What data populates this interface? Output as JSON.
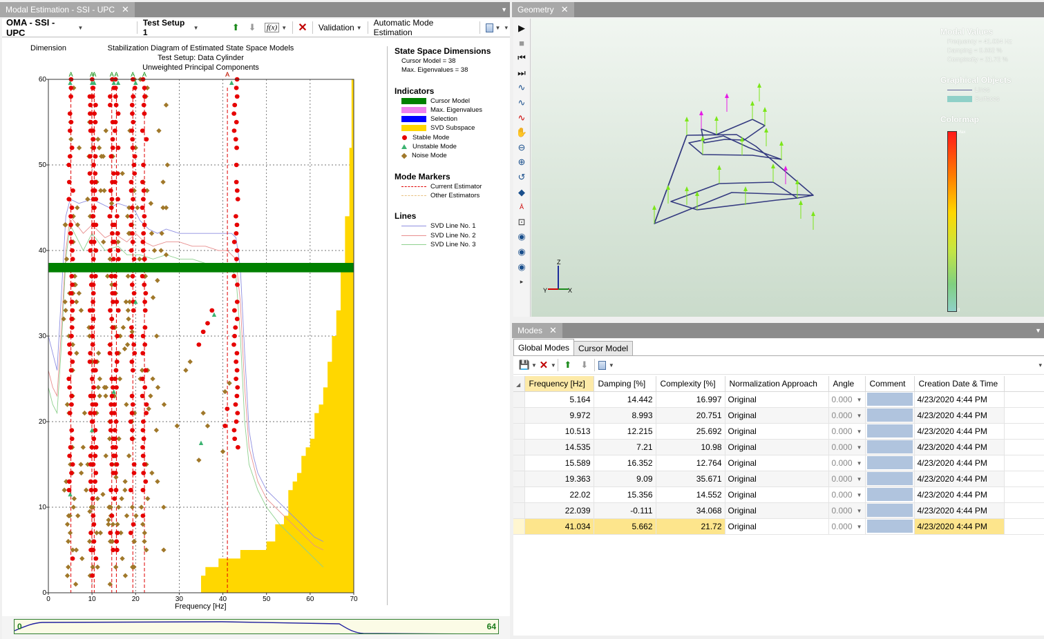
{
  "left_tab": {
    "title": "Modal Estimation - SSI - UPC"
  },
  "left_toolbar": {
    "method": "OMA - SSI - UPC",
    "setup": "Test Setup 1",
    "fx_label": "f(x)",
    "validation": "Validation",
    "auto": "Automatic Mode Estimation"
  },
  "chart": {
    "dimension_label": "Dimension",
    "title1": "Stabilization Diagram of Estimated State Space Models",
    "title2": "Test Setup: Data Cylinder",
    "title3": "Unweighted Principal Components",
    "xlabel": "Frequency [Hz]",
    "marker_letter": "A"
  },
  "chart_data": {
    "type": "scatter",
    "title": "Stabilization Diagram of Estimated State Space Models",
    "xlabel": "Frequency [Hz]",
    "ylabel": "Dimension",
    "xlim": [
      0,
      70
    ],
    "ylim": [
      0,
      60
    ],
    "xticks": [
      0,
      10,
      20,
      30,
      40,
      50,
      60,
      70
    ],
    "yticks": [
      0,
      10,
      20,
      30,
      40,
      50,
      60
    ],
    "cursor_model": 38,
    "max_eigenvalues": 38,
    "stable_columns_hz": [
      5.164,
      9.972,
      10.513,
      14.535,
      15.589,
      19.363,
      22.02,
      43.0
    ],
    "mode_markers_hz": [
      5.164,
      9.972,
      10.513,
      14.535,
      15.589,
      19.363,
      22.02,
      41.034
    ],
    "noise_points": [
      [
        9.5,
        9.5
      ],
      [
        12.5,
        11.5
      ],
      [
        13.8,
        8.5
      ],
      [
        15.5,
        13.5
      ],
      [
        17.5,
        28.5
      ],
      [
        19.2,
        30.5
      ],
      [
        21.5,
        26
      ],
      [
        23,
        21.5
      ],
      [
        24,
        34.5
      ],
      [
        25,
        36.5
      ],
      [
        27,
        39.5
      ],
      [
        29.5,
        19.5
      ],
      [
        31.5,
        26
      ],
      [
        32.5,
        27
      ],
      [
        34.5,
        15.5
      ],
      [
        35.5,
        21
      ],
      [
        36.5,
        19.5
      ],
      [
        40,
        16.5
      ],
      [
        40.5,
        23.5
      ],
      [
        41.5,
        24.5
      ],
      [
        18.5,
        45
      ],
      [
        23.5,
        45.5
      ],
      [
        26,
        42
      ],
      [
        12,
        47
      ],
      [
        14.5,
        45.5
      ],
      [
        27,
        45
      ]
    ],
    "stable_extra": [
      [
        34.5,
        29
      ],
      [
        35.5,
        30.5
      ],
      [
        36.5,
        31.5
      ],
      [
        37.5,
        33
      ],
      [
        40.5,
        19.5
      ],
      [
        41,
        21.5
      ]
    ],
    "unstable_points": [
      [
        35,
        17.5
      ],
      [
        38,
        32.5
      ],
      [
        5,
        11.5
      ],
      [
        10,
        19
      ],
      [
        15,
        23.5
      ],
      [
        20,
        34
      ]
    ],
    "svd_subspace_steps": [
      [
        35,
        2
      ],
      [
        36,
        3
      ],
      [
        39,
        4
      ],
      [
        44,
        5
      ],
      [
        50,
        6
      ],
      [
        52,
        8
      ],
      [
        54,
        9
      ],
      [
        55,
        12
      ],
      [
        56,
        13
      ],
      [
        57,
        14
      ],
      [
        58,
        16
      ],
      [
        59,
        17
      ],
      [
        60,
        18
      ],
      [
        61,
        21
      ],
      [
        62,
        22
      ],
      [
        63,
        24
      ],
      [
        64,
        27
      ],
      [
        65,
        30
      ],
      [
        66,
        33
      ],
      [
        67,
        38
      ],
      [
        68,
        44
      ],
      [
        69,
        52
      ],
      [
        69.5,
        60
      ],
      [
        70,
        60
      ]
    ],
    "svd_lines": [
      {
        "name": "SVD Line No. 1",
        "color": "#8e8ee0",
        "points": [
          [
            0,
            30
          ],
          [
            1,
            28
          ],
          [
            2,
            26
          ],
          [
            3,
            35
          ],
          [
            4,
            44
          ],
          [
            5,
            46
          ],
          [
            7,
            45.5
          ],
          [
            10,
            46
          ],
          [
            12,
            45.5
          ],
          [
            14,
            45
          ],
          [
            16,
            45.5
          ],
          [
            19,
            45
          ],
          [
            20,
            44.5
          ],
          [
            21,
            43.5
          ],
          [
            23,
            42.5
          ],
          [
            25,
            42
          ],
          [
            27,
            42.5
          ],
          [
            30,
            42
          ],
          [
            33,
            42
          ],
          [
            36,
            42
          ],
          [
            39,
            42
          ],
          [
            40,
            42
          ],
          [
            42,
            42
          ],
          [
            43,
            41.5
          ],
          [
            44,
            38
          ],
          [
            45,
            28
          ],
          [
            46,
            19
          ],
          [
            47,
            16
          ],
          [
            48,
            14
          ],
          [
            50,
            12
          ],
          [
            53,
            10.5
          ],
          [
            56,
            9
          ],
          [
            59,
            7.5
          ],
          [
            61,
            6.5
          ],
          [
            63,
            6
          ]
        ]
      },
      {
        "name": "SVD Line No. 2",
        "color": "#e88e8e",
        "points": [
          [
            0,
            26
          ],
          [
            1,
            24
          ],
          [
            2,
            23
          ],
          [
            3,
            31
          ],
          [
            4,
            40
          ],
          [
            5,
            44
          ],
          [
            8,
            42
          ],
          [
            10,
            43
          ],
          [
            13,
            41.5
          ],
          [
            15,
            42
          ],
          [
            18,
            41
          ],
          [
            20,
            42
          ],
          [
            22,
            41
          ],
          [
            24,
            40.5
          ],
          [
            27,
            41
          ],
          [
            30,
            41
          ],
          [
            33,
            40.5
          ],
          [
            36,
            40.5
          ],
          [
            39,
            40
          ],
          [
            41,
            40
          ],
          [
            43,
            39
          ],
          [
            44,
            34
          ],
          [
            45,
            24
          ],
          [
            46,
            17
          ],
          [
            48,
            13
          ],
          [
            50,
            11
          ],
          [
            53,
            9.5
          ],
          [
            56,
            8
          ],
          [
            59,
            6.5
          ],
          [
            61,
            5.5
          ],
          [
            63,
            5
          ]
        ]
      },
      {
        "name": "SVD Line No. 3",
        "color": "#8ed08e",
        "points": [
          [
            0,
            24
          ],
          [
            1,
            22
          ],
          [
            2,
            21
          ],
          [
            3,
            29
          ],
          [
            4,
            39
          ],
          [
            5,
            43
          ],
          [
            8,
            40
          ],
          [
            10,
            42
          ],
          [
            13,
            40
          ],
          [
            16,
            40.5
          ],
          [
            18,
            39.5
          ],
          [
            21,
            39.5
          ],
          [
            24,
            39
          ],
          [
            27,
            39.5
          ],
          [
            30,
            39
          ],
          [
            33,
            39
          ],
          [
            36,
            38.5
          ],
          [
            39,
            38.5
          ],
          [
            41,
            38.5
          ],
          [
            43,
            37
          ],
          [
            44,
            30
          ],
          [
            45,
            20
          ],
          [
            46,
            15
          ],
          [
            48,
            12
          ],
          [
            50,
            10
          ],
          [
            53,
            8
          ],
          [
            56,
            6.5
          ],
          [
            59,
            5
          ],
          [
            61,
            4
          ],
          [
            63,
            3
          ]
        ]
      }
    ]
  },
  "legend": {
    "ssd_title": "State Space Dimensions",
    "cursor_model": "Cursor Model = 38",
    "max_eig": "Max. Eigenvalues = 38",
    "indicators_title": "Indicators",
    "ind_cursor": "Cursor Model",
    "ind_maxeig": "Max. Eigenvalues",
    "ind_selection": "Selection",
    "ind_svd": "SVD Subspace",
    "ind_stable": "Stable Mode",
    "ind_unstable": "Unstable Mode",
    "ind_noise": "Noise Mode",
    "markers_title": "Mode Markers",
    "mk_current": "Current Estimator",
    "mk_other": "Other Estimators",
    "lines_title": "Lines",
    "line1": "SVD Line No. 1",
    "line2": "SVD Line No. 2",
    "line3": "SVD Line No. 3",
    "colors": {
      "cursor": "#008000",
      "maxeig": "#ee82ee",
      "selection": "#0000ff",
      "svd": "#ffd700",
      "stable": "#e60000",
      "unstable": "#3cb371",
      "noise": "#a0782a"
    }
  },
  "bottom_bar": {
    "min": "0",
    "max": "64"
  },
  "geometry": {
    "tab": "Geometry",
    "modal_values_title": "Modal Values",
    "frequency": "Frequency = 41.034 Hz",
    "damping": "Damping = 5.662 %",
    "complexity": "Complexity = 21.72 %",
    "graphical_objects_title": "Graphical Objects",
    "lines": "Lines",
    "surfaces": "Surfaces",
    "colormap_title": "Colormap",
    "colormap_max": "Max",
    "colormap_min": "0",
    "axis_z": "Z",
    "axis_y": "Y",
    "axis_x": "X"
  },
  "modes": {
    "tab": "Modes",
    "subtabs": [
      "Global Modes",
      "Cursor Model"
    ],
    "columns": [
      "Frequency [Hz]",
      "Damping [%]",
      "Complexity [%]",
      "Normalization Approach",
      "Angle",
      "Comment",
      "Creation Date & Time"
    ],
    "rows": [
      {
        "freq": "5.164",
        "damp": "14.442",
        "comp": "16.997",
        "norm": "Original",
        "angle": "0.000",
        "date": "4/23/2020 4:44 PM"
      },
      {
        "freq": "9.972",
        "damp": "8.993",
        "comp": "20.751",
        "norm": "Original",
        "angle": "0.000",
        "date": "4/23/2020 4:44 PM"
      },
      {
        "freq": "10.513",
        "damp": "12.215",
        "comp": "25.692",
        "norm": "Original",
        "angle": "0.000",
        "date": "4/23/2020 4:44 PM"
      },
      {
        "freq": "14.535",
        "damp": "7.21",
        "comp": "10.98",
        "norm": "Original",
        "angle": "0.000",
        "date": "4/23/2020 4:44 PM"
      },
      {
        "freq": "15.589",
        "damp": "16.352",
        "comp": "12.764",
        "norm": "Original",
        "angle": "0.000",
        "date": "4/23/2020 4:44 PM"
      },
      {
        "freq": "19.363",
        "damp": "9.09",
        "comp": "35.671",
        "norm": "Original",
        "angle": "0.000",
        "date": "4/23/2020 4:44 PM"
      },
      {
        "freq": "22.02",
        "damp": "15.356",
        "comp": "14.552",
        "norm": "Original",
        "angle": "0.000",
        "date": "4/23/2020 4:44 PM"
      },
      {
        "freq": "22.039",
        "damp": "-0.111",
        "comp": "34.068",
        "norm": "Original",
        "angle": "0.000",
        "date": "4/23/2020 4:44 PM"
      },
      {
        "freq": "41.034",
        "damp": "5.662",
        "comp": "21.72",
        "norm": "Original",
        "angle": "0.000",
        "date": "4/23/2020 4:44 PM"
      }
    ],
    "selected_row": 8
  }
}
